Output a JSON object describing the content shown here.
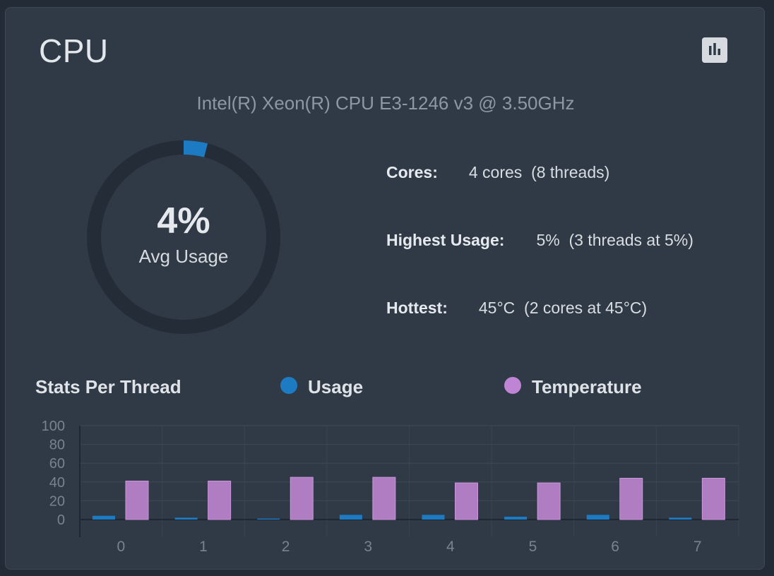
{
  "card": {
    "title": "CPU",
    "chart_toggle_icon": "bar-chart-icon"
  },
  "cpu_model": "Intel(R) Xeon(R) CPU E3-1246 v3 @ 3.50GHz",
  "gauge": {
    "value_text": "4%",
    "label": "Avg Usage",
    "percent": 4,
    "track_color": "#232c37",
    "fill_color": "#1d7bc4"
  },
  "info": {
    "cores_label": "Cores:",
    "cores_value": "4 cores  (8 threads)",
    "highest_label": "Highest Usage:",
    "highest_value": "5%  (3 threads at 5%)",
    "hottest_label": "Hottest:",
    "hottest_value": "45°C  (2 cores at 45°C)"
  },
  "stats": {
    "title": "Stats Per Thread",
    "legend": [
      {
        "label": "Usage",
        "color": "#1d7bc4"
      },
      {
        "label": "Temperature",
        "color": "#bf84d4"
      }
    ]
  },
  "chart_data": {
    "type": "bar",
    "categories": [
      "0",
      "1",
      "2",
      "3",
      "4",
      "5",
      "6",
      "7"
    ],
    "series": [
      {
        "name": "Usage",
        "values": [
          4,
          2,
          1,
          5,
          5,
          3,
          5,
          2
        ],
        "color": "#1d7bc4"
      },
      {
        "name": "Temperature",
        "values": [
          41,
          41,
          45,
          45,
          39,
          39,
          44,
          44
        ],
        "color": "#bf84d4"
      }
    ],
    "yticks": [
      0,
      20,
      40,
      60,
      80,
      100
    ],
    "ylim": [
      0,
      100
    ],
    "grid": true,
    "legend_position": "top"
  }
}
